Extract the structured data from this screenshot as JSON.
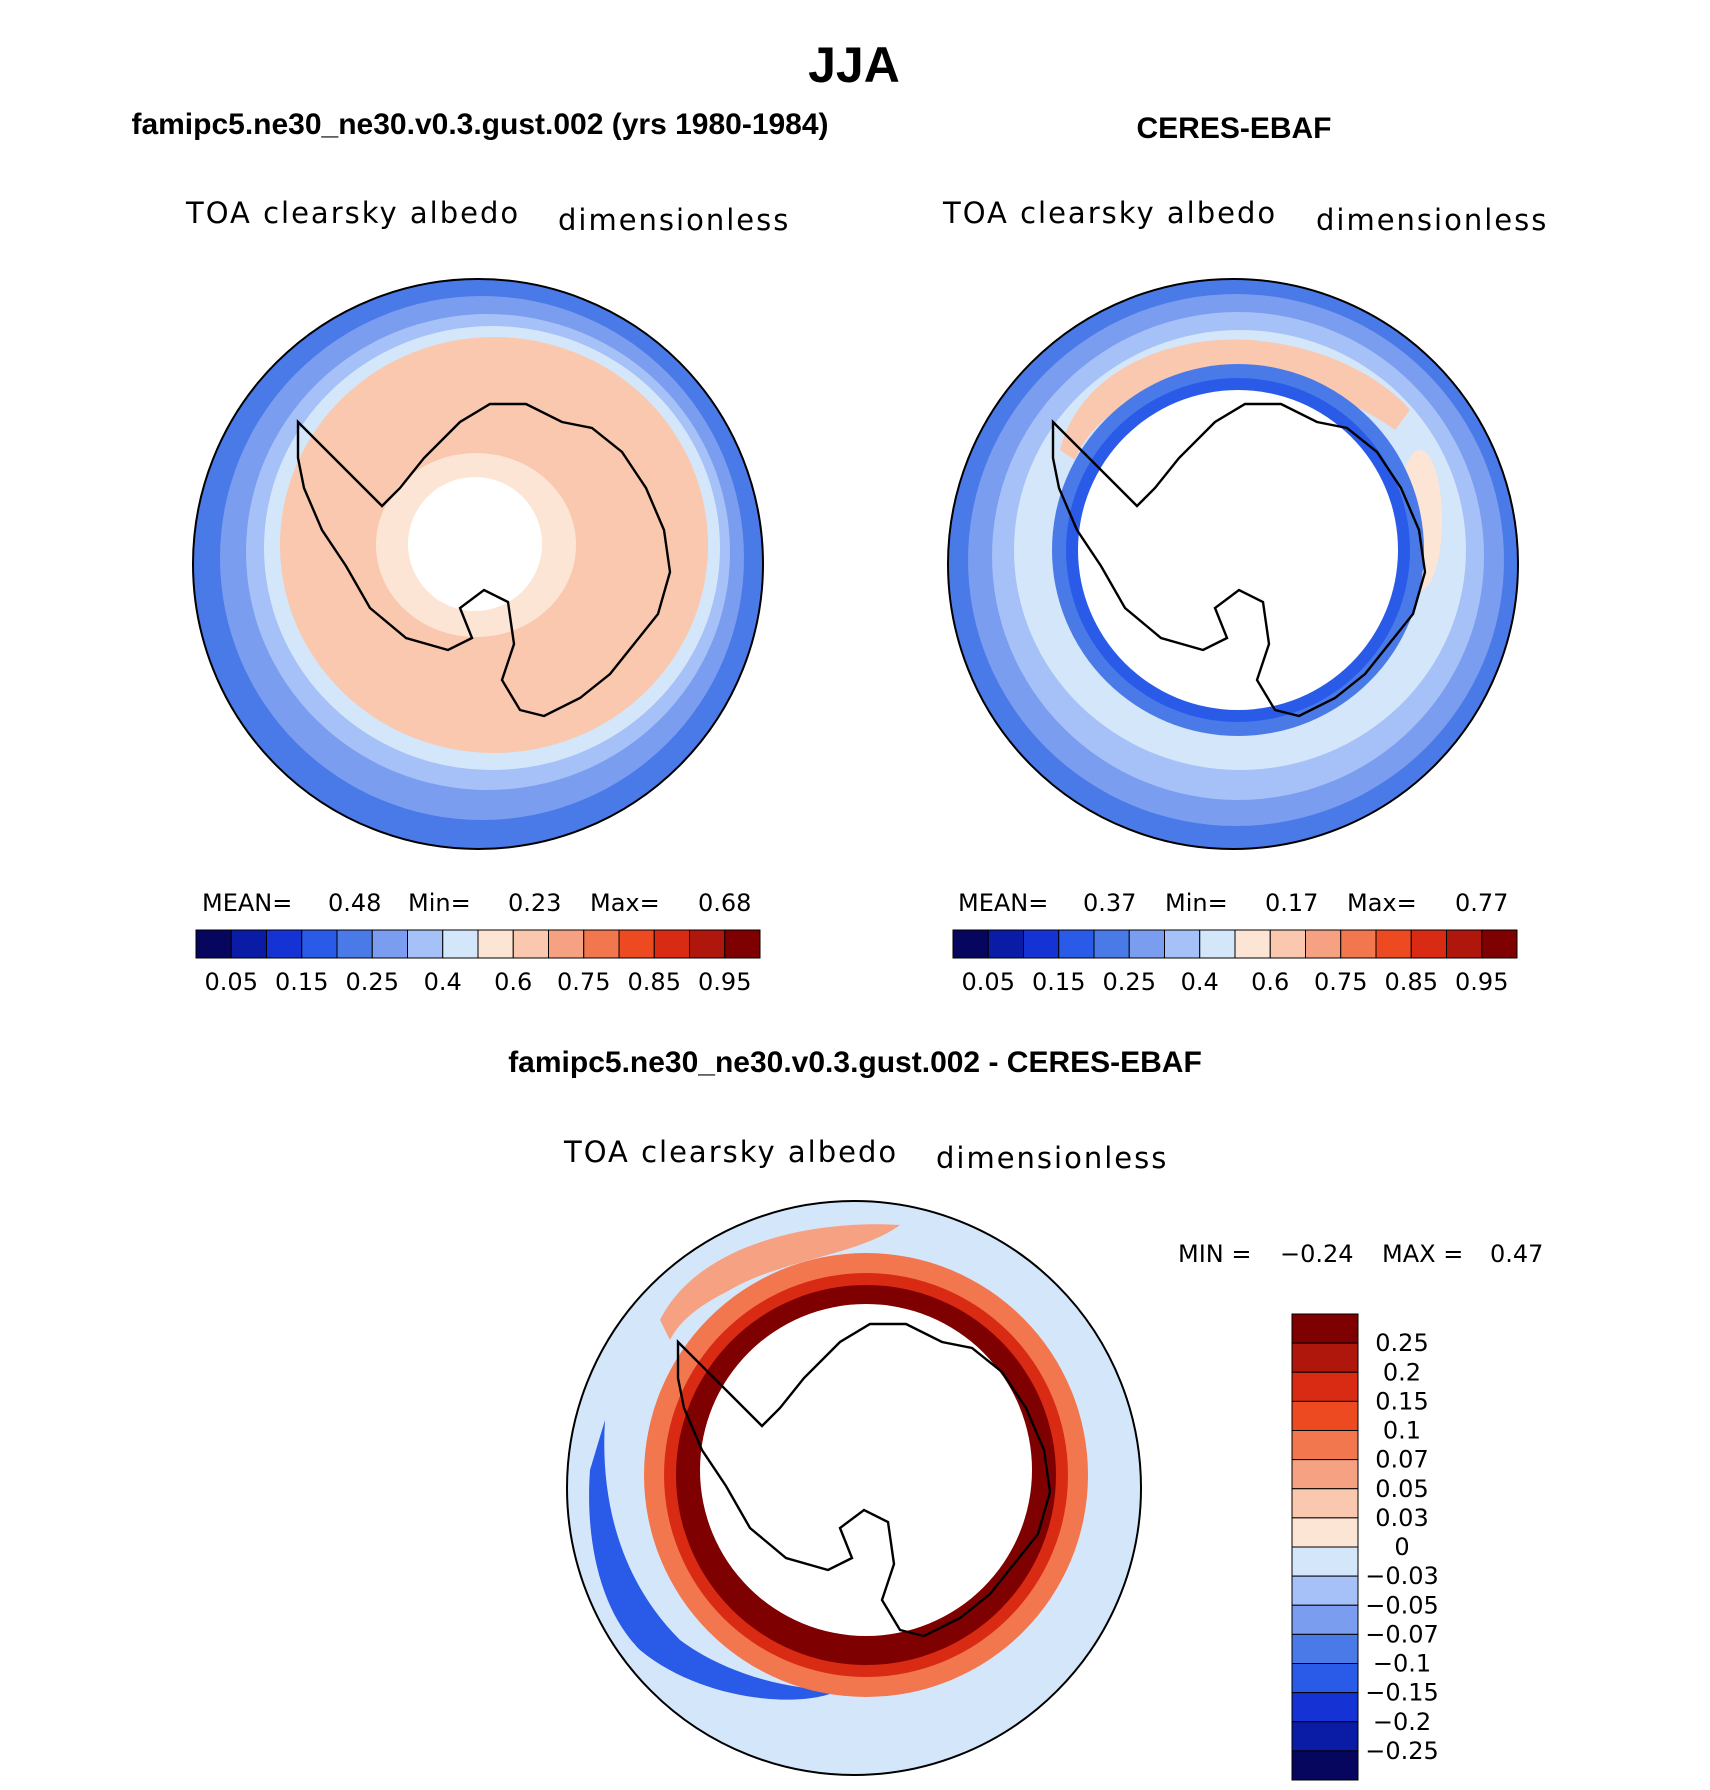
{
  "chart_data": {
    "type": "polar-contour-panels",
    "title": "JJA",
    "panels": [
      {
        "title": "famipc5.ne30_ne30.v0.3.gust.002 (yrs 1980-1984)",
        "variable": "TOA clearsky albedo",
        "units": "dimensionless",
        "stats": {
          "mean_label": "MEAN=",
          "mean": "0.48",
          "min_label": "Min=",
          "min": "0.23",
          "max_label": "Max=",
          "max": "0.68"
        },
        "colorbar_labels": [
          "0.05",
          "0.15",
          "0.25",
          "0.4",
          "0.6",
          "0.75",
          "0.85",
          "0.95"
        ]
      },
      {
        "title": "CERES-EBAF",
        "variable": "TOA clearsky albedo",
        "units": "dimensionless",
        "stats": {
          "mean_label": "MEAN=",
          "mean": "0.37",
          "min_label": "Min=",
          "min": "0.17",
          "max_label": "Max=",
          "max": "0.77"
        },
        "colorbar_labels": [
          "0.05",
          "0.15",
          "0.25",
          "0.4",
          "0.6",
          "0.75",
          "0.85",
          "0.95"
        ]
      },
      {
        "title": "famipc5.ne30_ne30.v0.3.gust.002 - CERES-EBAF",
        "variable": "TOA clearsky albedo",
        "units": "dimensionless",
        "stats": {
          "min_label": "MIN =",
          "min": "−0.24",
          "max_label": "MAX =",
          "max": "0.47"
        },
        "colorbar_labels": [
          "0.25",
          "0.2",
          "0.15",
          "0.1",
          "0.07",
          "0.05",
          "0.03",
          "0",
          "−0.03",
          "−0.05",
          "−0.07",
          "−0.1",
          "−0.15",
          "−0.2",
          "−0.25"
        ]
      }
    ]
  },
  "palettes": {
    "seq16": [
      "#06065e",
      "#0a1ba6",
      "#1532d4",
      "#2a5ae8",
      "#4a7ae8",
      "#7a9df0",
      "#a6c1f7",
      "#d4e6fa",
      "#fde5d6",
      "#f9c8ae",
      "#f6a282",
      "#f3774e",
      "#ee4a22",
      "#d92b14",
      "#b0170c",
      "#7f0000"
    ],
    "diff16": [
      "#7f0000",
      "#b0170c",
      "#d92b14",
      "#ee4a22",
      "#f3774e",
      "#f6a282",
      "#f9c8ae",
      "#fde5d6",
      "#d4e6fa",
      "#a6c1f7",
      "#7a9df0",
      "#4a7ae8",
      "#2a5ae8",
      "#1532d4",
      "#0a1ba6",
      "#06065e"
    ],
    "land": "#ffffff",
    "coast": "#000000"
  }
}
